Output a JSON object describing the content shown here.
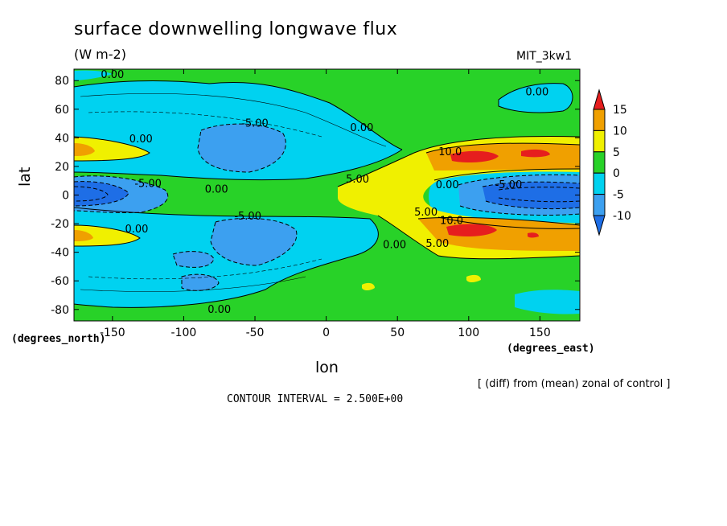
{
  "chart_data": {
    "type": "heatmap",
    "title": "surface downwelling longwave flux",
    "units": "(W m-2)",
    "model": "MIT_3kw1",
    "xlabel": "lon",
    "ylabel": "lat",
    "x_unit": "(degrees_east)",
    "y_unit": "(degrees_north)",
    "note": "[ (diff) from (mean) zonal of control ]",
    "contour_interval": "CONTOUR INTERVAL = 2.500E+00",
    "xlim": [
      -180,
      180
    ],
    "ylim": [
      -90,
      90
    ],
    "x_ticks": [
      -150,
      -100,
      -50,
      0,
      50,
      100,
      150
    ],
    "x_tick_labels": [
      "-150",
      "-100",
      "-50",
      "0",
      "50",
      "100",
      "150"
    ],
    "y_ticks": [
      80,
      60,
      40,
      20,
      0,
      -20,
      -40,
      -60,
      -80
    ],
    "y_tick_labels": [
      "80",
      "60",
      "40",
      "20",
      "0",
      "-20",
      "-40",
      "-60",
      "-80"
    ],
    "colorbar": {
      "levels": [
        -10,
        -5,
        0,
        5,
        10,
        15
      ],
      "labels": [
        "-10",
        "-5",
        "0",
        "5",
        "10",
        "15"
      ],
      "colors": [
        "#1e6ee6",
        "#3ca0f0",
        "#00d2f0",
        "#28d228",
        "#f0f000",
        "#f0a000",
        "#e61e1e"
      ]
    },
    "contour_labels": [
      {
        "text": "0.00",
        "lon": -150,
        "lat": 84
      },
      {
        "text": "0.00",
        "lon": 148,
        "lat": 72
      },
      {
        "text": "-5.00",
        "lon": -50,
        "lat": 50
      },
      {
        "text": "0.00",
        "lon": 25,
        "lat": 47
      },
      {
        "text": "0.00",
        "lon": -130,
        "lat": 39
      },
      {
        "text": "10.0",
        "lon": 87,
        "lat": 30
      },
      {
        "text": "-5.00",
        "lon": -125,
        "lat": 8
      },
      {
        "text": "5.00",
        "lon": 22,
        "lat": 11
      },
      {
        "text": "0.00",
        "lon": -77,
        "lat": 4
      },
      {
        "text": "0.00",
        "lon": 85,
        "lat": 7
      },
      {
        "text": "-5.00",
        "lon": 128,
        "lat": 7
      },
      {
        "text": "5.00",
        "lon": 70,
        "lat": -12
      },
      {
        "text": "10.0",
        "lon": 88,
        "lat": -18
      },
      {
        "text": "-5.00",
        "lon": -55,
        "lat": -15
      },
      {
        "text": "0.00",
        "lon": -133,
        "lat": -24
      },
      {
        "text": "0.00",
        "lon": 48,
        "lat": -35
      },
      {
        "text": "5.00",
        "lon": 78,
        "lat": -34
      },
      {
        "text": "0.00",
        "lon": -75,
        "lat": -80
      }
    ]
  }
}
